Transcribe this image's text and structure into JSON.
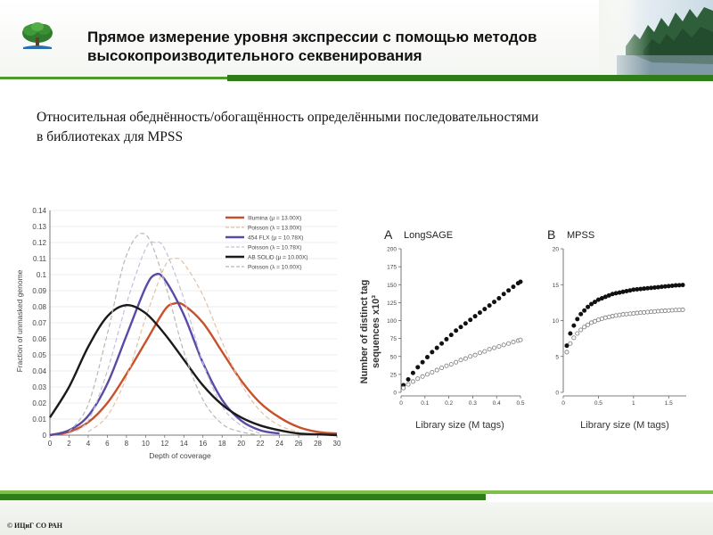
{
  "header": {
    "title_line1": "Прямое измерение уровня экспрессии с помощью методов",
    "title_line2": "высокопроизводительного  секвенирования",
    "logo_icon": "tree-logo-icon",
    "decoration": "forest-lake-image"
  },
  "subtitle": {
    "line1": "Относительная обеднённость/обогащённость определёнными последовательностями",
    "line2": "в библиотеках для MPSS"
  },
  "footer": {
    "copyright": "© ИЦиГ СО РАН"
  },
  "colors": {
    "brand_green_dark": "#2f7d18",
    "brand_green_light": "#7fbf4a"
  },
  "chart_data": [
    {
      "type": "line",
      "xlabel": "Depth of coverage",
      "ylabel": "Fraction of unmasked genome",
      "xlim": [
        0,
        30
      ],
      "ylim": [
        0,
        0.14
      ],
      "xticks": [
        "0",
        "2",
        "4",
        "6",
        "8",
        "10",
        "12",
        "14",
        "16",
        "18",
        "20",
        "22",
        "24",
        "26",
        "28",
        "30"
      ],
      "yticks": [
        "0",
        "0.01",
        "0.02",
        "0.03",
        "0.04",
        "0.05",
        "0.06",
        "0.07",
        "0.08",
        "0.09",
        "0.1",
        "0.11",
        "0.12",
        "0.13",
        "0.14"
      ],
      "legend_position": "top-right",
      "legend": [
        {
          "label": "Illumina (μ = 13.00X)",
          "color": "#c8502a",
          "style": "solid"
        },
        {
          "label": "Poisson (λ = 13.00X)",
          "color": "#e2c2a8",
          "style": "dashed"
        },
        {
          "label": "454 FLX (μ = 10.78X)",
          "color": "#5a4aa6",
          "style": "solid"
        },
        {
          "label": "Poisson (λ = 10.78X)",
          "color": "#c4c0dc",
          "style": "dashed"
        },
        {
          "label": "AB SOLiD (μ = 10.00X)",
          "color": "#1a1a1a",
          "style": "solid"
        },
        {
          "label": "Poisson (λ = 10.00X)",
          "color": "#b8b8b8",
          "style": "dashed"
        }
      ],
      "series": [
        {
          "color": "#c8502a",
          "style": "solid",
          "x": [
            0,
            2,
            4,
            6,
            8,
            10,
            12,
            13,
            14,
            16,
            18,
            20,
            22,
            24,
            26,
            28,
            30
          ],
          "y": [
            0,
            0.002,
            0.008,
            0.02,
            0.038,
            0.058,
            0.078,
            0.082,
            0.081,
            0.07,
            0.052,
            0.034,
            0.02,
            0.011,
            0.005,
            0.002,
            0.001
          ]
        },
        {
          "color": "#e2c2a8",
          "style": "dashed",
          "x": [
            4,
            6,
            8,
            10,
            12,
            13,
            14,
            16,
            18,
            20,
            22,
            24,
            26
          ],
          "y": [
            0.002,
            0.012,
            0.036,
            0.073,
            0.105,
            0.11,
            0.107,
            0.087,
            0.058,
            0.032,
            0.015,
            0.006,
            0.002
          ]
        },
        {
          "color": "#5a4aa6",
          "style": "solid",
          "x": [
            0,
            2,
            4,
            6,
            8,
            10,
            11,
            12,
            14,
            16,
            18,
            20,
            22,
            24
          ],
          "y": [
            0,
            0.003,
            0.012,
            0.032,
            0.062,
            0.092,
            0.1,
            0.097,
            0.075,
            0.045,
            0.022,
            0.009,
            0.003,
            0.001
          ]
        },
        {
          "color": "#c4c0dc",
          "style": "dashed",
          "x": [
            2,
            4,
            6,
            8,
            10,
            11,
            12,
            14,
            16,
            18,
            20,
            22
          ],
          "y": [
            0.001,
            0.009,
            0.04,
            0.082,
            0.116,
            0.12,
            0.116,
            0.085,
            0.045,
            0.018,
            0.006,
            0.001
          ]
        },
        {
          "color": "#1a1a1a",
          "style": "solid",
          "x": [
            0,
            2,
            4,
            6,
            8,
            10,
            12,
            14,
            16,
            18,
            20,
            22,
            24,
            26,
            28,
            30
          ],
          "y": [
            0.011,
            0.03,
            0.055,
            0.074,
            0.081,
            0.076,
            0.063,
            0.047,
            0.031,
            0.019,
            0.011,
            0.006,
            0.003,
            0.001,
            0.0005,
            0
          ]
        },
        {
          "color": "#b8b8b8",
          "style": "dashed",
          "x": [
            2,
            4,
            6,
            8,
            10,
            12,
            14,
            16,
            18,
            20,
            22
          ],
          "y": [
            0.002,
            0.019,
            0.063,
            0.112,
            0.125,
            0.095,
            0.052,
            0.022,
            0.007,
            0.002,
            0
          ]
        }
      ]
    },
    {
      "type": "scatter",
      "panel": "A",
      "title": "LongSAGE",
      "xlabel": "Library size (M tags)",
      "ylabel_line1": "Number of distinct tag",
      "ylabel_line2": "sequences x10³",
      "xlim": [
        0,
        0.5
      ],
      "ylim": [
        0,
        200
      ],
      "xticks": [
        "0",
        "0.1",
        "0.2",
        "0.3",
        "0.4",
        "0.5"
      ],
      "yticks": [
        "0",
        "25",
        "50",
        "75",
        "100",
        "125",
        "150",
        "175",
        "200"
      ],
      "series": [
        {
          "marker": "filled",
          "x": [
            0.01,
            0.03,
            0.05,
            0.07,
            0.09,
            0.11,
            0.13,
            0.15,
            0.17,
            0.19,
            0.21,
            0.23,
            0.25,
            0.27,
            0.29,
            0.31,
            0.33,
            0.35,
            0.37,
            0.39,
            0.41,
            0.43,
            0.45,
            0.47,
            0.49,
            0.5
          ],
          "y": [
            10,
            18,
            27,
            35,
            42,
            49,
            56,
            62,
            68,
            74,
            80,
            86,
            91,
            96,
            101,
            106,
            111,
            116,
            121,
            126,
            131,
            137,
            142,
            147,
            152,
            154
          ]
        },
        {
          "marker": "open",
          "x": [
            0.01,
            0.03,
            0.05,
            0.07,
            0.09,
            0.11,
            0.13,
            0.15,
            0.17,
            0.19,
            0.21,
            0.23,
            0.25,
            0.27,
            0.29,
            0.31,
            0.33,
            0.35,
            0.37,
            0.39,
            0.41,
            0.43,
            0.45,
            0.47,
            0.49,
            0.5
          ],
          "y": [
            6,
            11,
            15,
            19,
            22,
            25,
            28,
            31,
            34,
            37,
            39,
            42,
            45,
            47,
            50,
            52,
            55,
            57,
            60,
            62,
            64,
            66,
            68,
            70,
            72,
            73
          ]
        }
      ]
    },
    {
      "type": "scatter",
      "panel": "B",
      "title": "MPSS",
      "xlabel": "Library size (M tags)",
      "xlim": [
        0,
        1.75
      ],
      "ylim": [
        0,
        20
      ],
      "xticks": [
        "0",
        "0.5",
        "1",
        "1.5"
      ],
      "yticks": [
        "0",
        "5",
        "10",
        "15",
        "20"
      ],
      "series": [
        {
          "marker": "filled",
          "x": [
            0.05,
            0.1,
            0.15,
            0.2,
            0.25,
            0.3,
            0.35,
            0.4,
            0.45,
            0.5,
            0.55,
            0.6,
            0.65,
            0.7,
            0.75,
            0.8,
            0.85,
            0.9,
            0.95,
            1.0,
            1.05,
            1.1,
            1.15,
            1.2,
            1.25,
            1.3,
            1.35,
            1.4,
            1.45,
            1.5,
            1.55,
            1.6,
            1.65,
            1.7
          ],
          "y": [
            6.5,
            8.2,
            9.3,
            10.2,
            10.9,
            11.4,
            11.9,
            12.3,
            12.6,
            12.9,
            13.1,
            13.3,
            13.5,
            13.7,
            13.8,
            13.9,
            14.0,
            14.1,
            14.2,
            14.3,
            14.35,
            14.4,
            14.45,
            14.5,
            14.55,
            14.6,
            14.65,
            14.7,
            14.75,
            14.8,
            14.85,
            14.9,
            14.92,
            14.95
          ]
        },
        {
          "marker": "open",
          "x": [
            0.05,
            0.1,
            0.15,
            0.2,
            0.25,
            0.3,
            0.35,
            0.4,
            0.45,
            0.5,
            0.55,
            0.6,
            0.65,
            0.7,
            0.75,
            0.8,
            0.85,
            0.9,
            0.95,
            1.0,
            1.05,
            1.1,
            1.15,
            1.2,
            1.25,
            1.3,
            1.35,
            1.4,
            1.45,
            1.5,
            1.55,
            1.6,
            1.65,
            1.7
          ],
          "y": [
            5.6,
            6.8,
            7.6,
            8.2,
            8.7,
            9.1,
            9.4,
            9.7,
            9.9,
            10.1,
            10.25,
            10.4,
            10.5,
            10.6,
            10.7,
            10.78,
            10.85,
            10.9,
            10.95,
            11.0,
            11.05,
            11.1,
            11.14,
            11.18,
            11.22,
            11.26,
            11.3,
            11.33,
            11.36,
            11.4,
            11.43,
            11.46,
            11.48,
            11.5
          ]
        }
      ]
    }
  ]
}
